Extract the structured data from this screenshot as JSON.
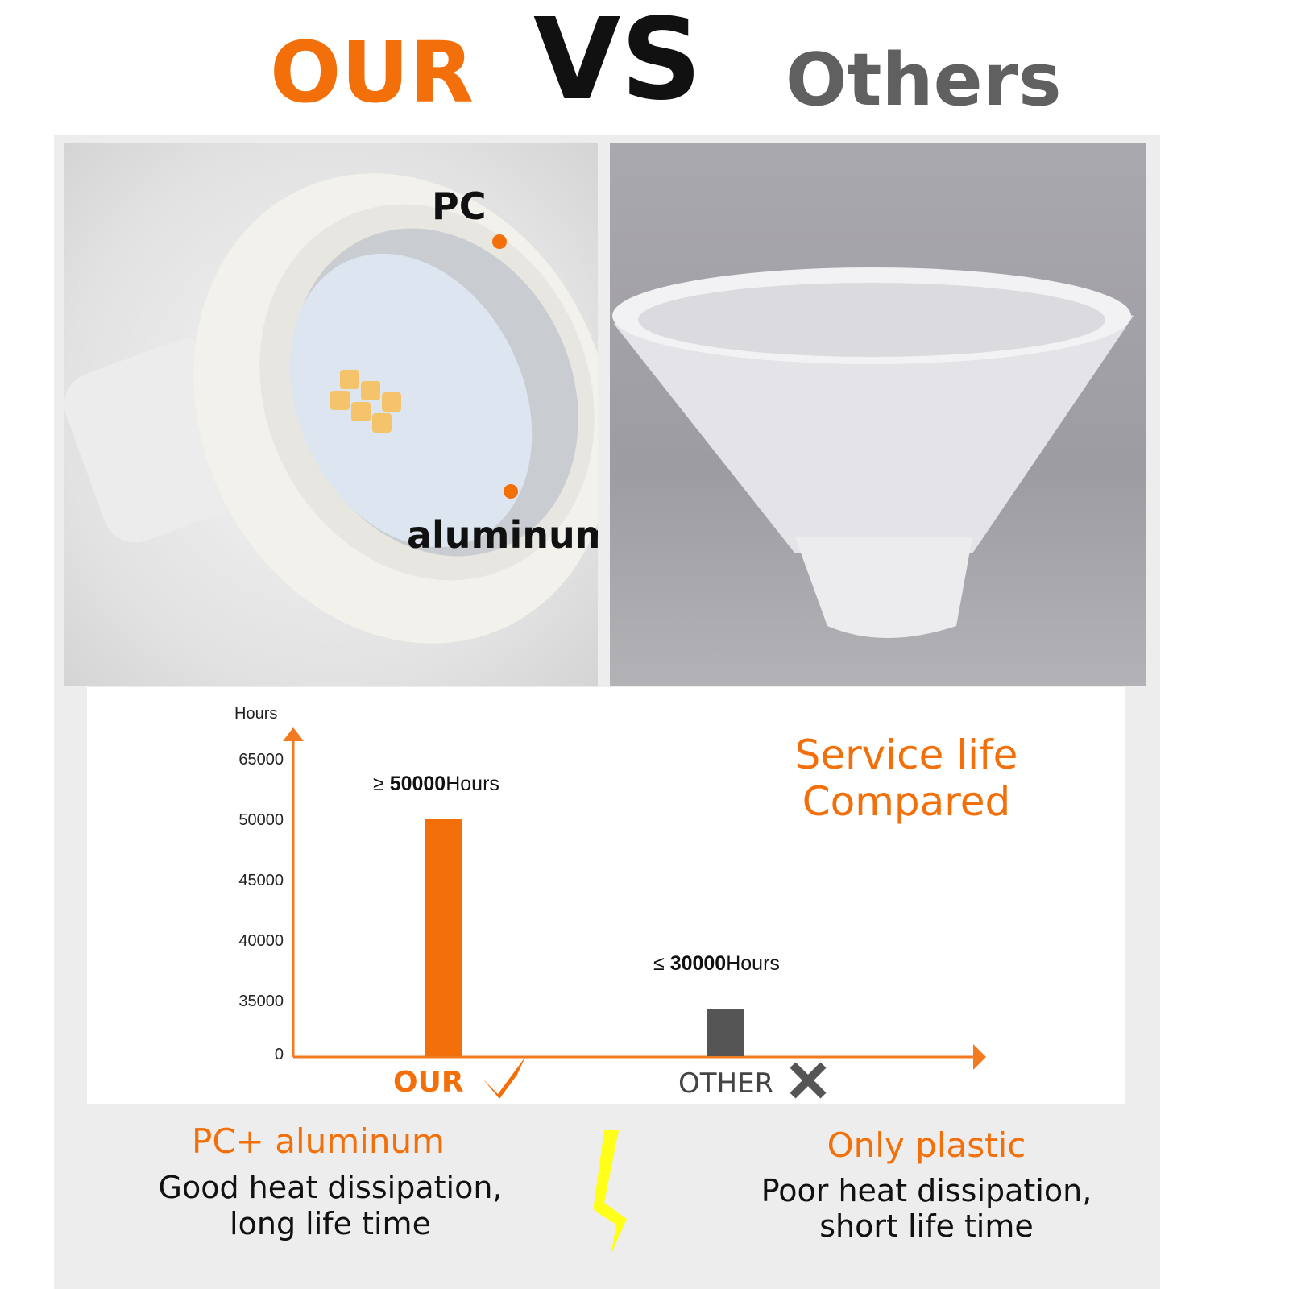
{
  "header": {
    "our": "OUR",
    "vs": "VS",
    "others": "Others"
  },
  "photo_left": {
    "label_pc": "PC",
    "label_aluminum": "aluminum"
  },
  "chart_data": {
    "type": "bar",
    "title": "Service life Compared",
    "ylabel": "Hours",
    "yticks": [
      0,
      35000,
      40000,
      45000,
      50000,
      65000
    ],
    "ytick_labels": [
      "0",
      "35000",
      "40000",
      "45000",
      "50000",
      "65000"
    ],
    "categories": [
      "OUR",
      "OTHER"
    ],
    "values": [
      50000,
      30000
    ],
    "data_labels": [
      {
        "symbol": "≥",
        "value": "50000",
        "unit": "Hours"
      },
      {
        "symbol": "≤",
        "value": "30000",
        "unit": "Hours"
      }
    ],
    "colors": [
      "#f36f0a",
      "#555555"
    ],
    "axis_color": "#f47a1f",
    "grid": false,
    "category_icons": [
      "check-icon",
      "cross-icon"
    ]
  },
  "bottom": {
    "left_title": "PC+ aluminum",
    "left_line1": "Good heat dissipation,",
    "left_line2": "long life time",
    "right_title": "Only plastic",
    "right_line1": "Poor heat dissipation,",
    "right_line2": "short life time"
  }
}
